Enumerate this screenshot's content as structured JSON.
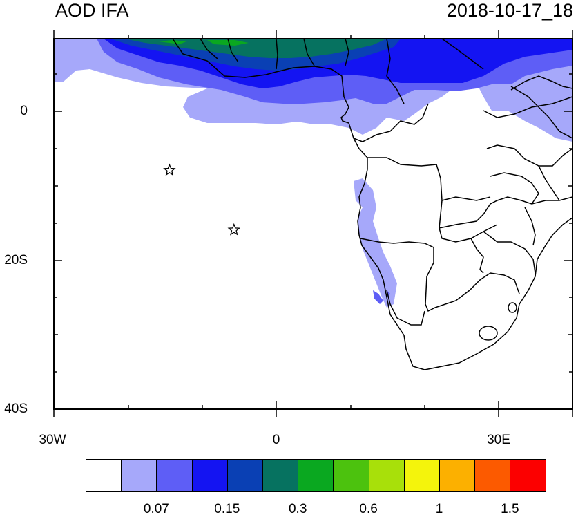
{
  "header": {
    "title_left": "AOD IFA",
    "title_right": "2018-10-17_18"
  },
  "axes": {
    "y_labels": [
      "0",
      "20S",
      "40S"
    ],
    "x_labels": [
      "30W",
      "0",
      "30E"
    ]
  },
  "stations": [
    {
      "name": "station-star-1",
      "lon": -14.4,
      "lat": -7.9
    },
    {
      "name": "station-star-2",
      "lon": -5.7,
      "lat": -15.9
    }
  ],
  "colorbar": {
    "colors": [
      "#ffffff",
      "#a6a8fa",
      "#5e5ef6",
      "#1414f2",
      "#0a40b4",
      "#067260",
      "#0aa820",
      "#4cc20e",
      "#a8e00a",
      "#f4f40c",
      "#fcb000",
      "#fc5a00",
      "#fc0000"
    ],
    "labels": [
      "0.07",
      "0.15",
      "0.3",
      "0.6",
      "1",
      "1.5"
    ]
  }
}
